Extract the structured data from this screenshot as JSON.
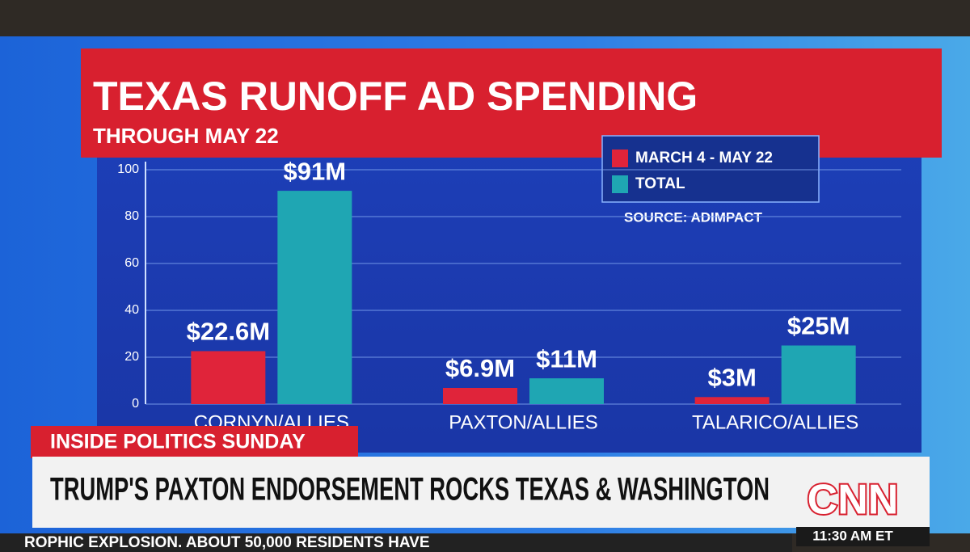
{
  "chart_data": {
    "type": "bar",
    "title": "TEXAS RUNOFF AD SPENDING",
    "subtitle": "THROUGH MAY 22",
    "source": "SOURCE: ADIMPACT",
    "categories": [
      "CORNYN/ALLIES",
      "PAXTON/ALLIES",
      "TALARICO/ALLIES"
    ],
    "series": [
      {
        "name": "MARCH 4 - MAY 22",
        "color": "#e0243a",
        "values": [
          22.6,
          6.9,
          3
        ],
        "value_labels": [
          "$22.6M",
          "$6.9M",
          "$3M"
        ]
      },
      {
        "name": "TOTAL",
        "color": "#1fa6b3",
        "values": [
          91,
          11,
          25
        ],
        "value_labels": [
          "$91M",
          "$11M",
          "$25M"
        ]
      }
    ],
    "ylim": [
      0,
      100
    ],
    "yticks": [
      0,
      20,
      40,
      60,
      80,
      100
    ],
    "grid": true
  },
  "screen": {
    "show": "INSIDE POLITICS SUNDAY",
    "headline": "TRUMP'S PAXTON ENDORSEMENT ROCKS TEXAS & WASHINGTON",
    "network": "CNN",
    "time": "11:30 AM ET",
    "ticker": "ROPHIC EXPLOSION. ABOUT 50,000 RESIDENTS HAVE"
  }
}
